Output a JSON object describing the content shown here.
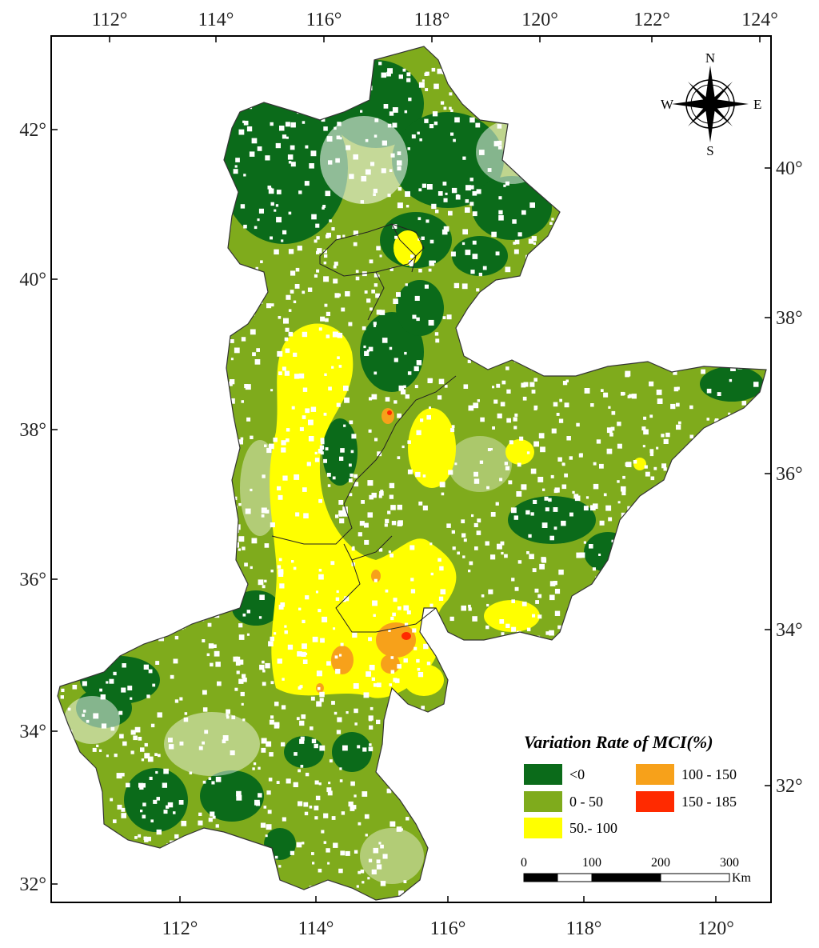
{
  "map": {
    "legend": {
      "title": "Variation Rate of MCI(%)",
      "classes": [
        {
          "label": "<0",
          "color": "#0b6b1a"
        },
        {
          "label": "0 - 50",
          "color": "#7fab1c"
        },
        {
          "label": "50.- 100",
          "color": "#ffff00"
        },
        {
          "label": "100 - 150",
          "color": "#f7a11a"
        },
        {
          "label": "150 - 185",
          "color": "#ff2a00"
        }
      ]
    },
    "compass": {
      "n": "N",
      "s": "S",
      "e": "E",
      "w": "W"
    },
    "scale_bar": {
      "labels": [
        "0",
        "100",
        "200",
        "300"
      ],
      "unit": "Km"
    },
    "top_longitude_labels": [
      "112°",
      "114°",
      "116°",
      "118°",
      "120°",
      "122°",
      "124°"
    ],
    "bottom_longitude_labels": [
      "112°",
      "114°",
      "116°",
      "118°",
      "120°"
    ],
    "left_latitude_labels": [
      "42°",
      "40°",
      "38°",
      "36°",
      "34°",
      "32°"
    ],
    "right_latitude_labels": [
      "40°",
      "38°",
      "36°",
      "34°",
      "32°"
    ],
    "colors": {
      "frame": "#000000",
      "boundary": "#333333",
      "background": "#ffffff"
    }
  }
}
